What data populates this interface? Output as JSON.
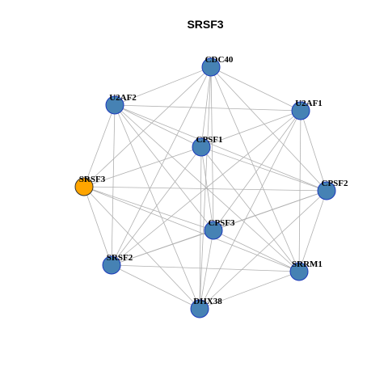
{
  "title": "SRSF3",
  "colors": {
    "node_fill": "#4682b4",
    "node_stroke": "#1c39bb",
    "focus_fill": "#ffa500",
    "focus_stroke": "#333333",
    "edge": "#b0b0b0",
    "label": "#000000"
  },
  "nodes": [
    {
      "id": "CDC40",
      "label": "CDC40",
      "focus": false
    },
    {
      "id": "U2AF1",
      "label": "U2AF1",
      "focus": false
    },
    {
      "id": "CPSF2",
      "label": "CPSF2",
      "focus": false
    },
    {
      "id": "SRRM1",
      "label": "SRRM1",
      "focus": false
    },
    {
      "id": "DHX38",
      "label": "DHX38",
      "focus": false
    },
    {
      "id": "SRSF2",
      "label": "SRSF2",
      "focus": false
    },
    {
      "id": "SRSF3",
      "label": "SRSF3",
      "focus": true
    },
    {
      "id": "U2AF2",
      "label": "U2AF2",
      "focus": false
    },
    {
      "id": "CPSF1",
      "label": "CPSF1",
      "focus": false
    },
    {
      "id": "CPSF3",
      "label": "CPSF3",
      "focus": false
    }
  ],
  "edges": [
    [
      "CDC40",
      "U2AF1"
    ],
    [
      "CDC40",
      "CPSF2"
    ],
    [
      "CDC40",
      "SRRM1"
    ],
    [
      "CDC40",
      "DHX38"
    ],
    [
      "CDC40",
      "SRSF2"
    ],
    [
      "CDC40",
      "SRSF3"
    ],
    [
      "CDC40",
      "U2AF2"
    ],
    [
      "CDC40",
      "CPSF1"
    ],
    [
      "CDC40",
      "CPSF3"
    ],
    [
      "U2AF1",
      "CPSF2"
    ],
    [
      "U2AF1",
      "SRRM1"
    ],
    [
      "U2AF1",
      "DHX38"
    ],
    [
      "U2AF1",
      "SRSF2"
    ],
    [
      "U2AF1",
      "U2AF2"
    ],
    [
      "U2AF1",
      "CPSF1"
    ],
    [
      "U2AF1",
      "CPSF3"
    ],
    [
      "CPSF2",
      "SRRM1"
    ],
    [
      "CPSF2",
      "DHX38"
    ],
    [
      "CPSF2",
      "SRSF2"
    ],
    [
      "CPSF2",
      "SRSF3"
    ],
    [
      "CPSF2",
      "U2AF2"
    ],
    [
      "CPSF2",
      "CPSF1"
    ],
    [
      "CPSF2",
      "CPSF3"
    ],
    [
      "SRRM1",
      "DHX38"
    ],
    [
      "SRRM1",
      "SRSF2"
    ],
    [
      "SRRM1",
      "SRSF3"
    ],
    [
      "SRRM1",
      "U2AF2"
    ],
    [
      "SRRM1",
      "CPSF1"
    ],
    [
      "SRRM1",
      "CPSF3"
    ],
    [
      "DHX38",
      "SRSF2"
    ],
    [
      "DHX38",
      "SRSF3"
    ],
    [
      "DHX38",
      "U2AF2"
    ],
    [
      "DHX38",
      "CPSF1"
    ],
    [
      "DHX38",
      "CPSF3"
    ],
    [
      "SRSF2",
      "SRSF3"
    ],
    [
      "SRSF2",
      "U2AF2"
    ],
    [
      "SRSF2",
      "CPSF1"
    ],
    [
      "SRSF2",
      "CPSF3"
    ],
    [
      "SRSF3",
      "U2AF2"
    ],
    [
      "SRSF3",
      "CPSF1"
    ],
    [
      "SRSF3",
      "CPSF3"
    ],
    [
      "U2AF2",
      "CPSF1"
    ],
    [
      "U2AF2",
      "CPSF3"
    ],
    [
      "CPSF1",
      "CPSF3"
    ]
  ]
}
